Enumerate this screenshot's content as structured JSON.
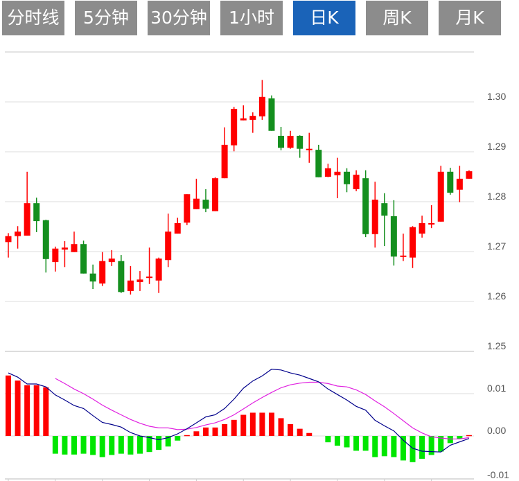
{
  "tabs": [
    {
      "label": "分时线",
      "active": false
    },
    {
      "label": "5分钟",
      "active": false
    },
    {
      "label": "30分钟",
      "active": false
    },
    {
      "label": "1小时",
      "active": false
    },
    {
      "label": "日K",
      "active": true
    },
    {
      "label": "周K",
      "active": false
    },
    {
      "label": "月K",
      "active": false
    }
  ],
  "colors": {
    "tab_bg": "#8c8c8c",
    "tab_active_bg": "#1a63b8",
    "up": "#ff0000",
    "down": "#148f1e",
    "macd_up": "#ff0000",
    "macd_down": "#00e600",
    "dif": "#00008b",
    "dea": "#e020e0",
    "grid": "#dddddd"
  },
  "chart_data": [
    {
      "type": "candlestick",
      "ylim": [
        1.25,
        1.31
      ],
      "yticks": [
        "1.30",
        "1.29",
        "1.28",
        "1.27",
        "1.26",
        "1.25"
      ],
      "ytick_values": [
        1.3,
        1.29,
        1.28,
        1.27,
        1.26,
        1.25
      ],
      "grid": true,
      "ohlc": [
        [
          1.2719,
          1.2737,
          1.2688,
          1.2731
        ],
        [
          1.2731,
          1.2751,
          1.2706,
          1.274
        ],
        [
          1.2732,
          1.286,
          1.2732,
          1.2797
        ],
        [
          1.2797,
          1.2808,
          1.2739,
          1.2761
        ],
        [
          1.2763,
          1.2764,
          1.2658,
          1.2685
        ],
        [
          1.2679,
          1.271,
          1.266,
          1.2706
        ],
        [
          1.2704,
          1.2721,
          1.2669,
          1.2708
        ],
        [
          1.2699,
          1.274,
          1.2699,
          1.2715
        ],
        [
          1.2715,
          1.2722,
          1.2656,
          1.2656
        ],
        [
          1.2656,
          1.2674,
          1.2625,
          1.264
        ],
        [
          1.2636,
          1.2699,
          1.2631,
          1.2681
        ],
        [
          1.2679,
          1.2703,
          1.2671,
          1.2686
        ],
        [
          1.2681,
          1.2693,
          1.2617,
          1.2619
        ],
        [
          1.2621,
          1.2671,
          1.2614,
          1.2642
        ],
        [
          1.2639,
          1.2661,
          1.2621,
          1.2644
        ],
        [
          1.2647,
          1.2708,
          1.2635,
          1.265
        ],
        [
          1.2642,
          1.2688,
          1.2617,
          1.2686
        ],
        [
          1.2683,
          1.2776,
          1.2669,
          1.274
        ],
        [
          1.2736,
          1.2768,
          1.2736,
          1.2757
        ],
        [
          1.2758,
          1.2815,
          1.2753,
          1.2815
        ],
        [
          1.2785,
          1.2846,
          1.2785,
          1.2806
        ],
        [
          1.2804,
          1.2825,
          1.2779,
          1.2786
        ],
        [
          1.2781,
          1.2849,
          1.2781,
          1.2847
        ],
        [
          1.2847,
          1.2949,
          1.2847,
          1.2914
        ],
        [
          1.2913,
          1.299,
          1.2901,
          1.2986
        ],
        [
          1.2963,
          1.2993,
          1.2963,
          1.2967
        ],
        [
          1.2964,
          1.2979,
          1.2938,
          1.2972
        ],
        [
          1.2971,
          1.3044,
          1.2964,
          1.301
        ],
        [
          1.3007,
          1.3013,
          1.2942,
          1.2942
        ],
        [
          1.2932,
          1.295,
          1.2903,
          1.2908
        ],
        [
          1.2908,
          1.2942,
          1.2906,
          1.2932
        ],
        [
          1.2932,
          1.2933,
          1.2888,
          1.2906
        ],
        [
          1.2905,
          1.2938,
          1.2878,
          1.2906
        ],
        [
          1.2904,
          1.2914,
          1.2849,
          1.2849
        ],
        [
          1.285,
          1.2876,
          1.2849,
          1.2867
        ],
        [
          1.2853,
          1.2888,
          1.2807,
          1.286
        ],
        [
          1.286,
          1.2867,
          1.2819,
          1.2835
        ],
        [
          1.2825,
          1.2863,
          1.2821,
          1.2854
        ],
        [
          1.2847,
          1.2863,
          1.2729,
          1.2735
        ],
        [
          1.2735,
          1.284,
          1.2708,
          1.2804
        ],
        [
          1.2797,
          1.2817,
          1.2711,
          1.2772
        ],
        [
          1.2771,
          1.2803,
          1.2672,
          1.269
        ],
        [
          1.269,
          1.2736,
          1.2681,
          1.2692
        ],
        [
          1.2688,
          1.2751,
          1.2667,
          1.2749
        ],
        [
          1.2736,
          1.2772,
          1.2728,
          1.2757
        ],
        [
          1.2756,
          1.2793,
          1.2747,
          1.2757
        ],
        [
          1.276,
          1.2872,
          1.276,
          1.286
        ],
        [
          1.286,
          1.2868,
          1.2814,
          1.2818
        ],
        [
          1.2824,
          1.2872,
          1.2799,
          1.2846
        ],
        [
          1.2846,
          1.2863,
          1.2846,
          1.2861
        ]
      ]
    },
    {
      "type": "macd",
      "ylim": [
        -0.01,
        0.0128
      ],
      "yticks": [
        "0.01",
        "0.00",
        "-0.01"
      ],
      "ytick_values": [
        0.01,
        0.0,
        -0.01
      ],
      "grid": true,
      "histogram": [
        0.0143,
        0.0131,
        0.012,
        0.012,
        0.0115,
        -0.0042,
        -0.0044,
        -0.0044,
        -0.0042,
        -0.0045,
        -0.005,
        -0.0045,
        -0.0042,
        -0.0044,
        -0.0042,
        -0.0038,
        -0.0033,
        -0.0025,
        -0.0011,
        0.0002,
        0.0011,
        0.002,
        0.002,
        0.0028,
        0.0038,
        0.005,
        0.0055,
        0.0055,
        0.0055,
        0.0042,
        0.0028,
        0.0017,
        0.0007,
        0,
        -0.0015,
        -0.0023,
        -0.0027,
        -0.0035,
        -0.0035,
        -0.005,
        -0.0048,
        -0.005,
        -0.0058,
        -0.0062,
        -0.0054,
        -0.0045,
        -0.0037,
        -0.0017,
        -0.0007,
        0.0002
      ],
      "dif": [
        0.0149,
        0.0139,
        0.0123,
        0.0123,
        0.0116,
        0.0097,
        0.0085,
        0.0072,
        0.0065,
        0.0048,
        0.0032,
        0.0027,
        0.0021,
        0.0008,
        0.0,
        -0.0004,
        -0.0009,
        -0.0004,
        0.0005,
        0.0017,
        0.0031,
        0.0045,
        0.005,
        0.0065,
        0.0087,
        0.0113,
        0.013,
        0.0142,
        0.0158,
        0.0156,
        0.0149,
        0.0144,
        0.0136,
        0.0128,
        0.0111,
        0.0098,
        0.0085,
        0.007,
        0.0061,
        0.0037,
        0.0024,
        0.0012,
        -0.001,
        -0.0029,
        -0.0036,
        -0.0037,
        -0.0038,
        -0.0022,
        -0.0014,
        -0.0006
      ],
      "dea": [
        null,
        null,
        null,
        null,
        null,
        0.0136,
        0.0124,
        0.0111,
        0.01,
        0.0087,
        0.0073,
        0.0061,
        0.005,
        0.0039,
        0.003,
        0.0023,
        0.0019,
        0.0019,
        0.0015,
        0.0016,
        0.002,
        0.0026,
        0.0031,
        0.0039,
        0.005,
        0.0064,
        0.0078,
        0.0091,
        0.0103,
        0.0114,
        0.0121,
        0.0125,
        0.0127,
        0.0127,
        0.0124,
        0.0118,
        0.0116,
        0.0109,
        0.0098,
        0.0083,
        0.0069,
        0.0053,
        0.0036,
        0.0019,
        0.0007,
        -0.0002,
        -0.0005,
        -0.0007,
        -0.0007,
        -0.0004
      ]
    }
  ]
}
